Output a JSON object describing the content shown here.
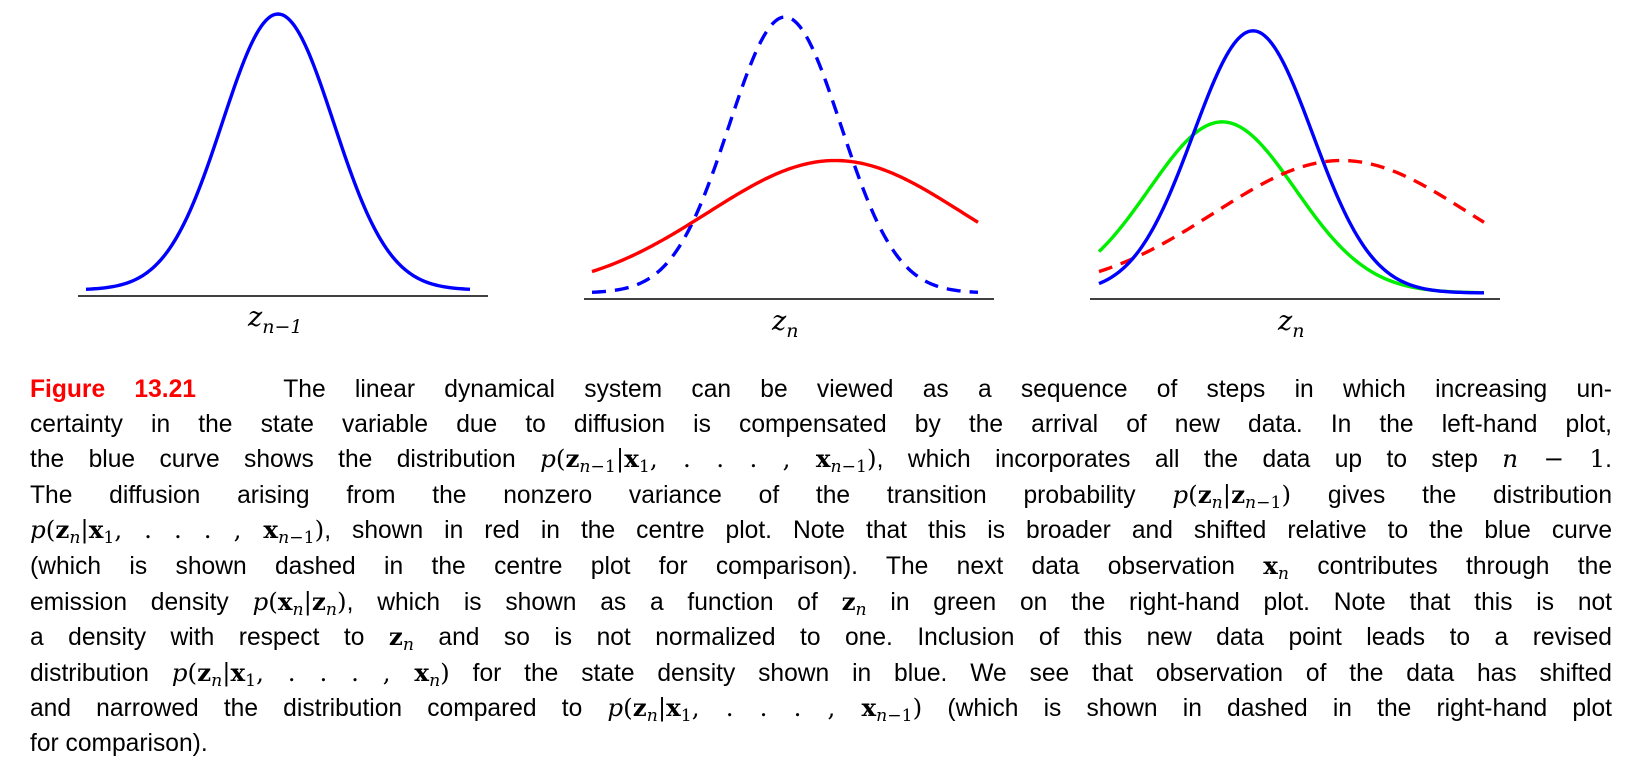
{
  "chart_data": [
    {
      "type": "line",
      "panel": "left",
      "xlabel": "z_{n-1}",
      "xlabel_main": "z",
      "xlabel_sub": "n−1",
      "x_range": [
        0,
        10
      ],
      "y_range": [
        0,
        1
      ],
      "series": [
        {
          "color": "#0000ff",
          "style": "solid",
          "mean": 5.0,
          "sd": 1.45,
          "peak": 1.0
        }
      ]
    },
    {
      "type": "line",
      "panel": "centre",
      "xlabel": "z_n",
      "xlabel_main": "z",
      "xlabel_sub": "n",
      "x_range": [
        0,
        10
      ],
      "y_range": [
        0,
        1
      ],
      "series": [
        {
          "color": "#0000ff",
          "style": "dashed",
          "mean": 5.0,
          "sd": 1.45,
          "peak": 1.0
        },
        {
          "color": "#ff0000",
          "style": "solid",
          "mean": 6.3,
          "sd": 3.3,
          "peak": 0.48
        }
      ]
    },
    {
      "type": "line",
      "panel": "right",
      "xlabel": "z_n",
      "xlabel_main": "z",
      "xlabel_sub": "n",
      "x_range": [
        0,
        10
      ],
      "y_range": [
        0,
        1
      ],
      "series": [
        {
          "color": "#00ee00",
          "style": "solid",
          "mean": 3.2,
          "sd": 1.9,
          "peak": 0.62
        },
        {
          "color": "#ff0000",
          "style": "dashed",
          "mean": 6.3,
          "sd": 3.3,
          "peak": 0.48
        },
        {
          "color": "#0000ff",
          "style": "solid",
          "mean": 4.0,
          "sd": 1.55,
          "peak": 0.95
        }
      ]
    }
  ],
  "caption": {
    "figure_label": "Figure 13.21",
    "lines": [
      "The linear dynamical system can be viewed as a sequence of steps in which increasing un-",
      "certainty in the state variable due to diffusion is compensated by the arrival of new data. In the left-hand plot,",
      [
        "the blue curve shows the distribution ",
        "p(z_{n−1}|x_1, . . . , x_{n−1})",
        ", which incorporates all the data up to step ",
        "n − 1",
        "."
      ],
      [
        "The diffusion arising from the nonzero variance of the transition probability ",
        "p(z_n|z_{n−1})",
        " gives the distribution"
      ],
      [
        "p(z_n|x_1, . . . , x_{n−1})",
        ", shown in red in the centre plot. Note that this is broader and shifted relative to the blue curve"
      ],
      [
        "(which is shown dashed in the centre plot for comparison). The next data observation ",
        "x_n",
        " contributes through the"
      ],
      [
        "emission density ",
        "p(x_n|z_n)",
        ", which is shown as a function of ",
        "z_n",
        " in green on the right-hand plot. Note that this is not"
      ],
      [
        "a density with respect to ",
        "z_n",
        " and so is not normalized to one. Inclusion of this new data point leads to a revised"
      ],
      [
        "distribution ",
        "p(z_n|x_1, . . . , x_n)",
        " for the state density shown in blue. We see that observation of the data has shifted"
      ],
      [
        "and narrowed the distribution compared to ",
        "p(z_n|x_1, . . . , x_{n−1})",
        " (which is shown in dashed in the right-hand plot"
      ],
      "for comparison)."
    ]
  }
}
